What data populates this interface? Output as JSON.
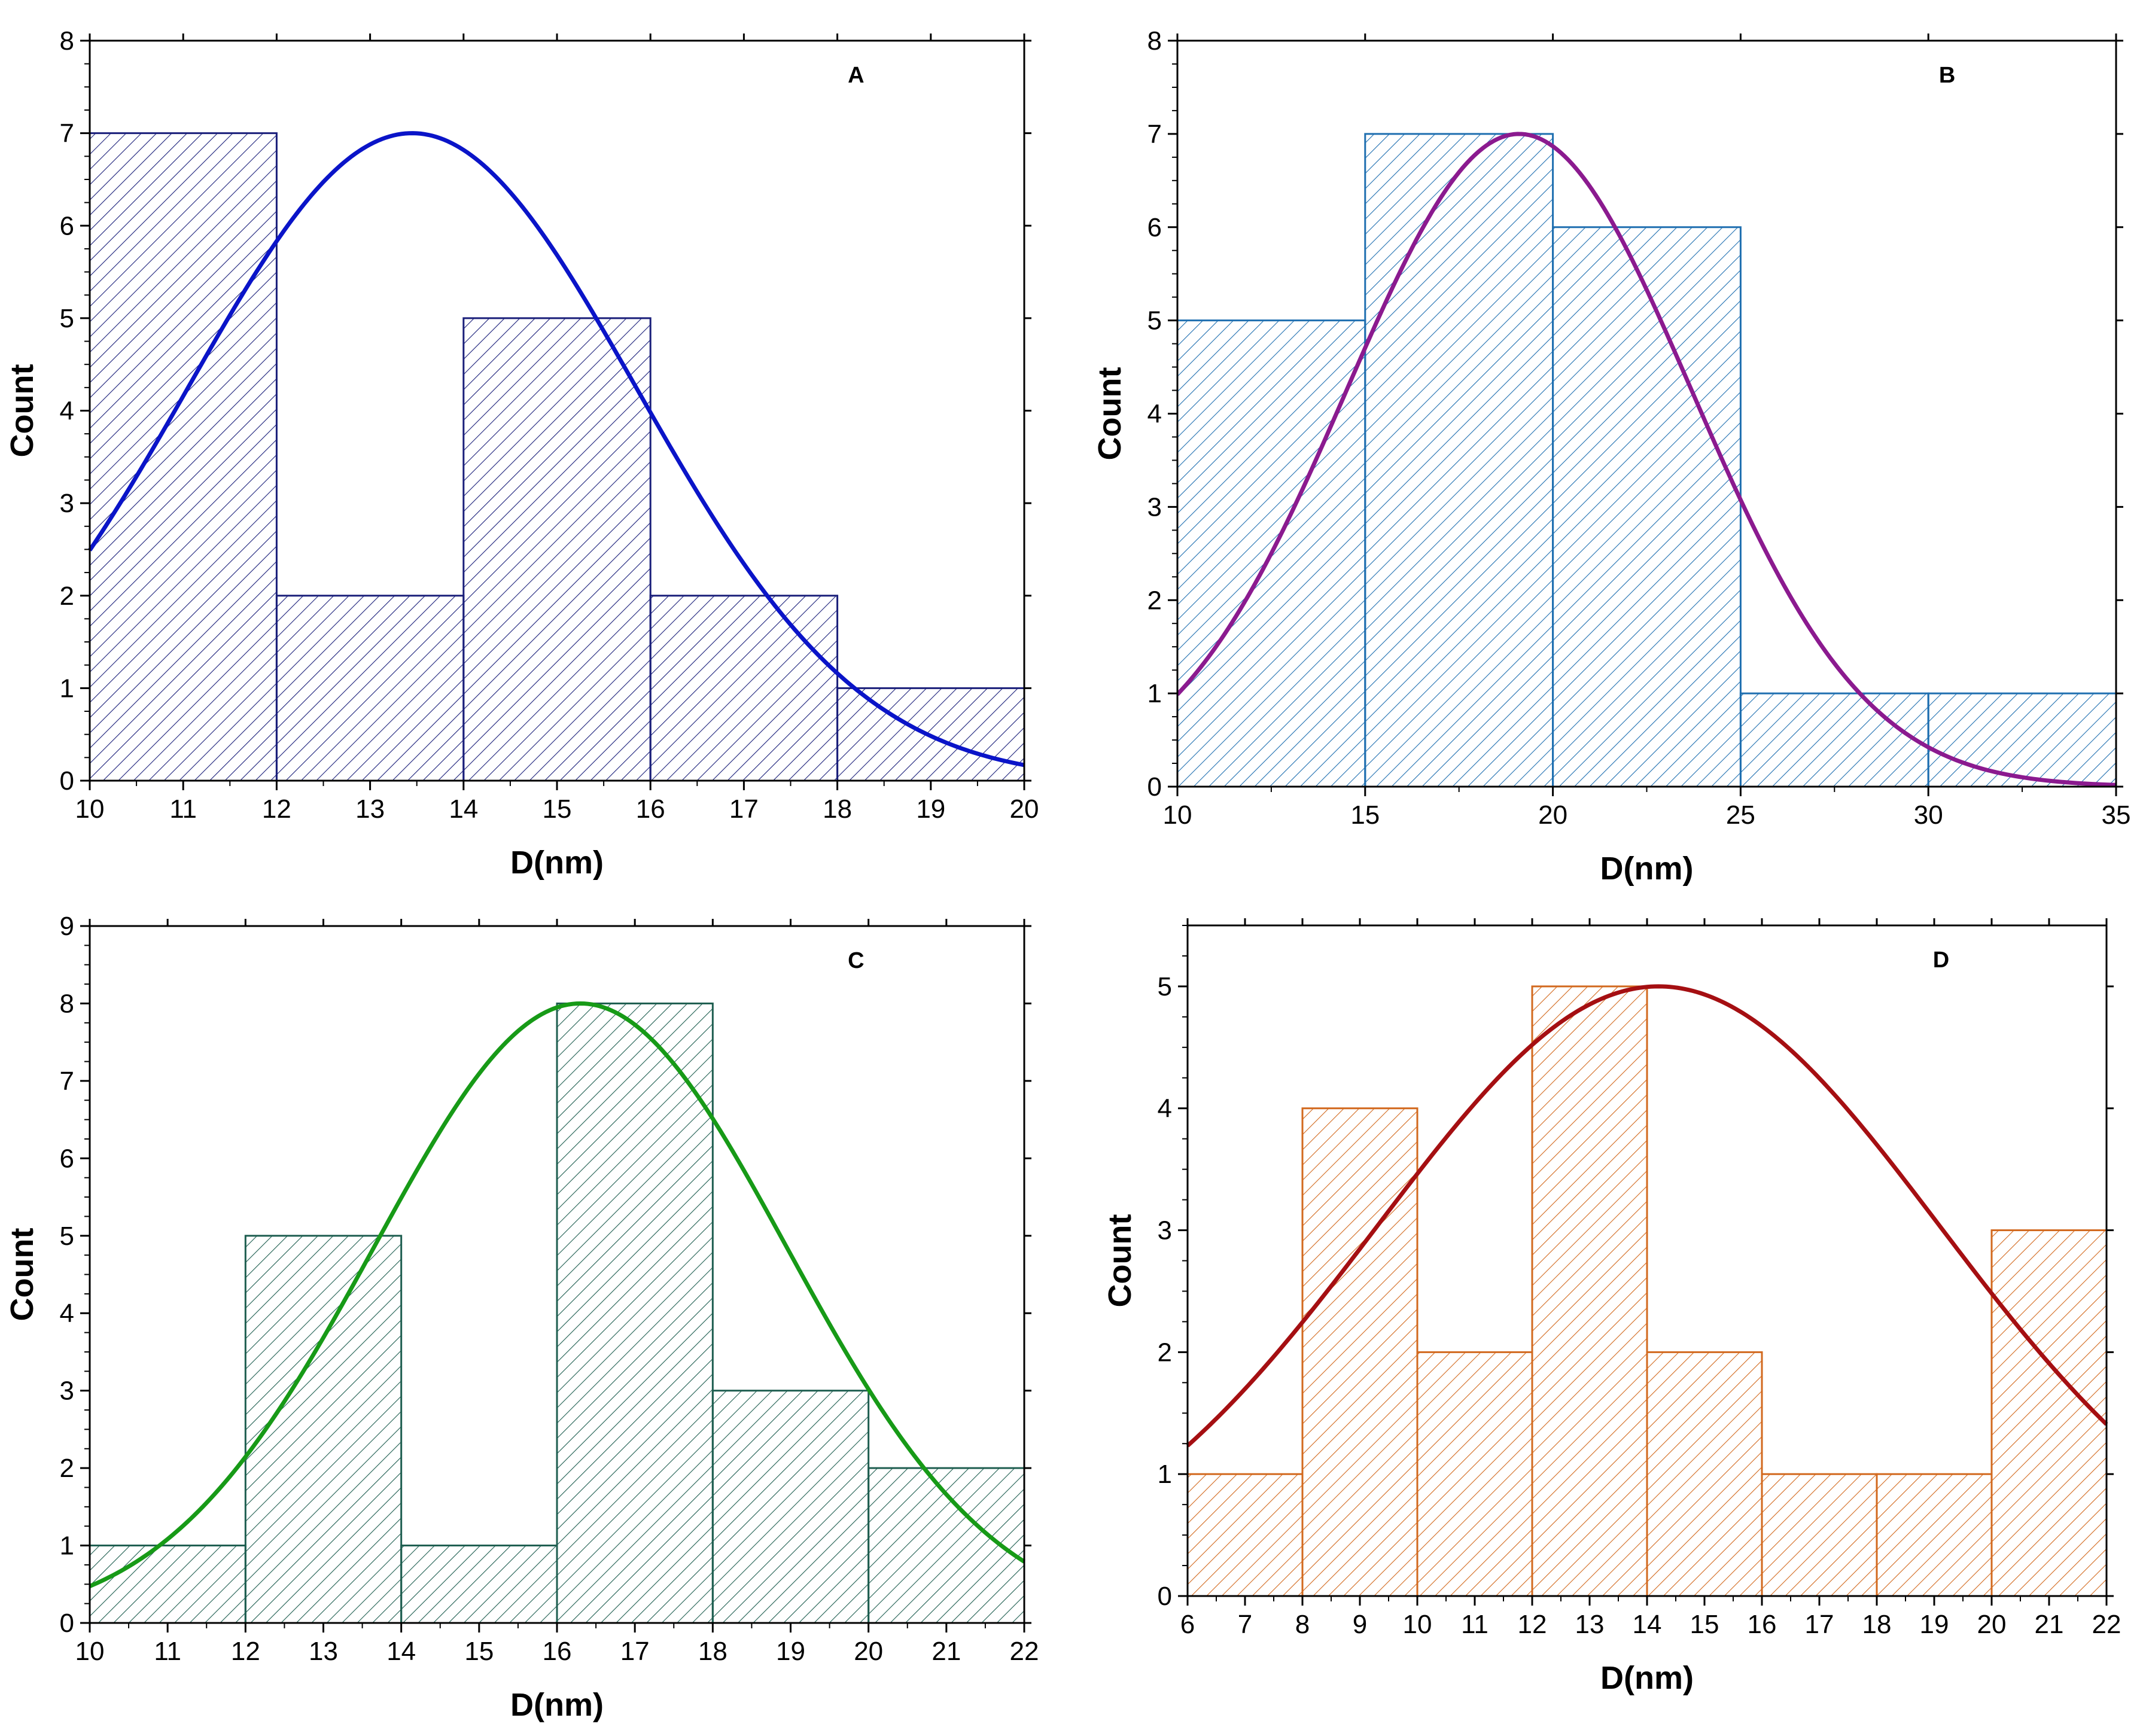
{
  "chart_data": [
    {
      "type": "bar",
      "panel_label": "A",
      "xlabel": "D(nm)",
      "ylabel": "Count",
      "xlim": [
        10,
        20
      ],
      "ylim": [
        0,
        8
      ],
      "xticks": [
        "10",
        "11",
        "12",
        "13",
        "14",
        "15",
        "16",
        "17",
        "18",
        "19",
        "20"
      ],
      "yticks": [
        "0",
        "1",
        "2",
        "3",
        "4",
        "5",
        "6",
        "7",
        "8"
      ],
      "bin_edges": [
        10,
        12,
        14,
        16,
        18,
        20
      ],
      "values": [
        7,
        2,
        5,
        2,
        1
      ],
      "fit": {
        "type": "gaussian",
        "center": 13.45,
        "sigma": 2.4,
        "amplitude": 7
      },
      "colors": {
        "bar": "#1a1f7a",
        "fit": "#0a14c8"
      }
    },
    {
      "type": "bar",
      "panel_label": "B",
      "xlabel": "D(nm)",
      "ylabel": "Count",
      "xlim": [
        10,
        35
      ],
      "ylim": [
        0,
        8
      ],
      "xticks": [
        "10",
        "15",
        "20",
        "25",
        "30",
        "35"
      ],
      "yticks": [
        "0",
        "1",
        "2",
        "3",
        "4",
        "5",
        "6",
        "7",
        "8"
      ],
      "bin_edges": [
        10,
        15,
        20,
        25,
        30,
        35
      ],
      "values": [
        5,
        7,
        6,
        1,
        1
      ],
      "fit": {
        "type": "gaussian",
        "center": 19.1,
        "sigma": 4.6,
        "amplitude": 7
      },
      "colors": {
        "bar": "#1f6fb0",
        "fit": "#8b1a8f"
      }
    },
    {
      "type": "bar",
      "panel_label": "C",
      "xlabel": "D(nm)",
      "ylabel": "Count",
      "xlim": [
        10,
        22
      ],
      "ylim": [
        0,
        9
      ],
      "xticks": [
        "10",
        "11",
        "12",
        "13",
        "14",
        "15",
        "16",
        "17",
        "18",
        "19",
        "20",
        "21",
        "22"
      ],
      "yticks": [
        "0",
        "1",
        "2",
        "3",
        "4",
        "5",
        "6",
        "7",
        "8",
        "9"
      ],
      "bin_edges": [
        10,
        12,
        14,
        16,
        18,
        20,
        22
      ],
      "values": [
        1,
        5,
        1,
        8,
        3,
        2
      ],
      "fit": {
        "type": "gaussian",
        "center": 16.3,
        "sigma": 2.65,
        "amplitude": 8
      },
      "colors": {
        "bar": "#1e5e50",
        "fit": "#179a17"
      }
    },
    {
      "type": "bar",
      "panel_label": "D",
      "xlabel": "D(nm)",
      "ylabel": "Count",
      "xlim": [
        6,
        22
      ],
      "ylim": [
        0,
        5.5
      ],
      "xticks": [
        "6",
        "7",
        "8",
        "9",
        "10",
        "11",
        "12",
        "13",
        "14",
        "15",
        "16",
        "17",
        "18",
        "19",
        "20",
        "21",
        "22"
      ],
      "yticks": [
        "0",
        "1",
        "2",
        "3",
        "4",
        "5"
      ],
      "bin_edges": [
        6,
        8,
        10,
        12,
        14,
        16,
        18,
        20,
        22
      ],
      "values": [
        1,
        4,
        2,
        5,
        2,
        1,
        1,
        3
      ],
      "fit": {
        "type": "gaussian",
        "center": 14.2,
        "sigma": 4.9,
        "amplitude": 5
      },
      "colors": {
        "bar": "#d2691e",
        "fit": "#a50f12"
      }
    }
  ]
}
